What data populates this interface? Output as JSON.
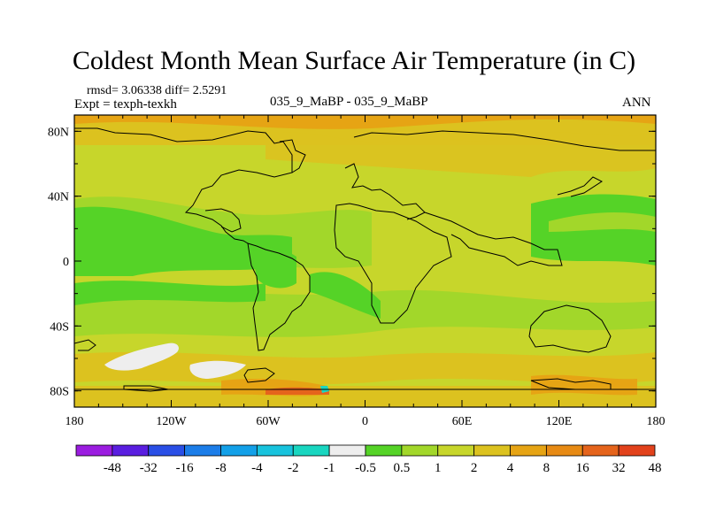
{
  "chart_data": {
    "type": "heatmap",
    "title": "Coldest Month Mean Surface Air Temperature (in C)",
    "stats_line": "rmsd= 3.06338 diff= 2.5291",
    "expt_line": "Expt = texph-texkh",
    "center_label": "035_9_MaBP - 035_9_MaBP",
    "right_label": "ANN",
    "x_ticks": [
      "180",
      "120W",
      "60W",
      "0",
      "60E",
      "120E",
      "180"
    ],
    "y_ticks": [
      "80N",
      "40N",
      "0",
      "40S",
      "80S"
    ],
    "lon_range": [
      -180,
      180
    ],
    "lat_range": [
      -90,
      90
    ],
    "colorbar": {
      "labels": [
        "-48",
        "-32",
        "-16",
        "-8",
        "-4",
        "-2",
        "-1",
        "-0.5",
        "0.5",
        "1",
        "2",
        "4",
        "8",
        "16",
        "32",
        "48"
      ],
      "colors": [
        "#9b1de0",
        "#5a1ee0",
        "#2a4fe6",
        "#1c7de8",
        "#13a0e8",
        "#18c3dd",
        "#19d6c0",
        "#eeeeee",
        "#55d327",
        "#a2d72a",
        "#c7d62b",
        "#dcc21f",
        "#e6a414",
        "#e78a14",
        "#e5641c",
        "#e2421c"
      ]
    }
  }
}
